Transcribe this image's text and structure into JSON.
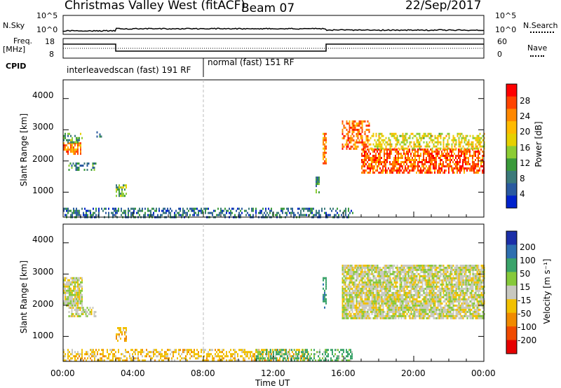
{
  "header": {
    "station": "Christmas Valley West (fitACF)",
    "beam": "Beam 07",
    "date": "22/Sep/2017"
  },
  "summary_panels": {
    "nsky_label": "N.Sky",
    "nsearch_label": "N.Search",
    "freq_label_line1": "Freq.",
    "freq_label_line2": "[MHz]",
    "nave_label": "Nave",
    "cpid_label": "CPID",
    "noise_ticks": [
      "10^5",
      "10^0"
    ],
    "freq_ticks": [
      "18",
      "8"
    ],
    "nave_ticks": [
      "60",
      "0"
    ]
  },
  "cpid_segments": [
    {
      "label": "interleavedscan (fast) 191 RF",
      "start_hour": 0,
      "end_hour": 8
    },
    {
      "label": "normal (fast) 151 RF",
      "start_hour": 8,
      "end_hour": 24
    }
  ],
  "power_colorbar": {
    "title": "Power [dB]",
    "ticks": [
      "28",
      "24",
      "20",
      "16",
      "12",
      "8",
      "4"
    ],
    "colors": [
      "#ff0000",
      "#ff4400",
      "#ff8800",
      "#ffbb00",
      "#e6d000",
      "#8ccc33",
      "#3a9a3a",
      "#3b7a7a",
      "#2a5aa0",
      "#0022cc"
    ]
  },
  "velocity_colorbar": {
    "title": "Velocity [m s⁻¹]",
    "ticks": [
      "200",
      "100",
      "50",
      "15",
      "-15",
      "-50",
      "-100",
      "-200"
    ],
    "colors": [
      "#1c2fa8",
      "#2e6fb0",
      "#3aa36a",
      "#86c93a",
      "#c8c8c0",
      "#f2c000",
      "#f08a00",
      "#f04a00",
      "#e60000"
    ]
  },
  "x_axis": {
    "title": "Time UT",
    "ticks": [
      "00:00",
      "04:00",
      "08:00",
      "12:00",
      "16:00",
      "20:00",
      "00:00"
    ]
  },
  "y_axis": {
    "title": "Slant Range [km]",
    "ticks": [
      "4000",
      "3000",
      "2000",
      "1000"
    ]
  },
  "chart_data": [
    {
      "type": "heatmap",
      "panel": "power",
      "x_range_hours": [
        0,
        24
      ],
      "ylim_km": [
        200,
        4600
      ],
      "scatter_regions": [
        {
          "t0": 0.0,
          "t1": 1.0,
          "r0": 2200,
          "r1": 2600,
          "value": 24,
          "density": 0.7
        },
        {
          "t0": 0.0,
          "t1": 1.1,
          "r0": 2600,
          "r1": 2900,
          "value": 12,
          "density": 0.45
        },
        {
          "t0": 0.3,
          "t1": 1.9,
          "r0": 1700,
          "r1": 1950,
          "value": 10,
          "density": 0.5
        },
        {
          "t0": 1.9,
          "t1": 2.2,
          "r0": 2800,
          "r1": 2950,
          "value": 10,
          "density": 0.4
        },
        {
          "t0": 3.0,
          "t1": 3.6,
          "r0": 850,
          "r1": 1250,
          "value": 14,
          "density": 0.6
        },
        {
          "t0": 14.4,
          "t1": 14.6,
          "r0": 1000,
          "r1": 1500,
          "value": 10,
          "density": 0.5
        },
        {
          "t0": 14.8,
          "t1": 15.0,
          "r0": 1900,
          "r1": 2900,
          "value": 24,
          "density": 0.7
        },
        {
          "t0": 15.9,
          "t1": 17.5,
          "r0": 2400,
          "r1": 3300,
          "value": 25,
          "density": 0.55
        },
        {
          "t0": 17.0,
          "t1": 24.0,
          "r0": 1600,
          "r1": 2400,
          "value": 26,
          "density": 0.7
        },
        {
          "t0": 17.5,
          "t1": 24.0,
          "r0": 2400,
          "r1": 2900,
          "value": 18,
          "density": 0.5
        },
        {
          "t0": 0.0,
          "t1": 16.5,
          "r0": 200,
          "r1": 500,
          "value": 8,
          "density": 0.45
        }
      ]
    },
    {
      "type": "heatmap",
      "panel": "velocity",
      "x_range_hours": [
        0,
        24
      ],
      "ylim_km": [
        200,
        4600
      ],
      "scatter_regions": [
        {
          "t0": 0.0,
          "t1": 1.1,
          "r0": 2000,
          "r1": 2900,
          "value": 0,
          "density": 0.8
        },
        {
          "t0": 0.3,
          "t1": 1.9,
          "r0": 1650,
          "r1": 1950,
          "value": 0,
          "density": 0.6
        },
        {
          "t0": 3.0,
          "t1": 3.6,
          "r0": 850,
          "r1": 1300,
          "value": -40,
          "density": 0.6
        },
        {
          "t0": 14.8,
          "t1": 15.0,
          "r0": 1900,
          "r1": 2900,
          "value": 60,
          "density": 0.6
        },
        {
          "t0": 15.9,
          "t1": 24.0,
          "r0": 1600,
          "r1": 3300,
          "value": 0,
          "density": 0.85
        },
        {
          "t0": 0.0,
          "t1": 14.0,
          "r0": 200,
          "r1": 600,
          "value": -30,
          "density": 0.5
        },
        {
          "t0": 11.0,
          "t1": 16.5,
          "r0": 200,
          "r1": 600,
          "value": 40,
          "density": 0.5
        }
      ]
    }
  ]
}
